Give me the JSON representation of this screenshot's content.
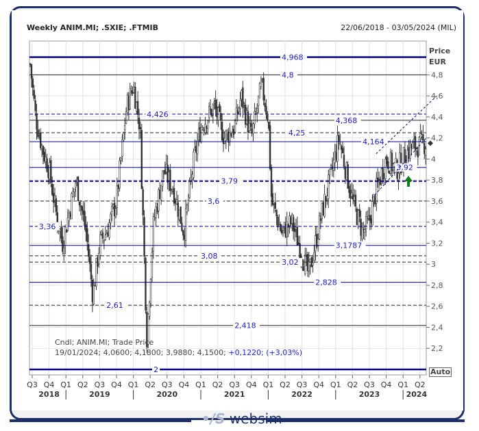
{
  "header": {
    "title": "Weekly ANIM.MI; .SXIE; .FTMIB",
    "range": "22/06/2018 - 03/05/2024 (MIL)"
  },
  "axis": {
    "price_label": "Price",
    "currency": "EUR",
    "auto": "Auto"
  },
  "legend": {
    "line1": "Cndl; ANIM.MI; Trade Price",
    "line2": "19/01/2024; 4,0600; 4,1800; 3,9880; 4,1500;",
    "change": "+0,1220; (+3,03%)"
  },
  "brand": "websim",
  "chart_data": {
    "type": "candlestick",
    "title": "Weekly ANIM.MI; .SXIE; .FTMIB",
    "ylabel": "Price EUR",
    "ylim": [
      2,
      4.968
    ],
    "yticks": [
      2.2,
      2.4,
      2.6,
      2.8,
      3,
      3.2,
      3.4,
      3.6,
      3.8,
      4,
      4.2,
      4.4,
      4.6,
      4.8
    ],
    "ytick_labels": [
      "2,2",
      "2,4",
      "2,6",
      "2,8",
      "3",
      "3,2",
      "3,4",
      "3,6",
      "3,8",
      "4",
      "4,2",
      "4,4",
      "4,6",
      "4,8"
    ],
    "xticks": [
      "Q3",
      "Q4",
      "Q1",
      "Q2",
      "Q3",
      "Q4",
      "Q1",
      "Q2",
      "Q3",
      "Q4",
      "Q1",
      "Q2",
      "Q3",
      "Q4",
      "Q1",
      "Q2",
      "Q3",
      "Q4",
      "Q1",
      "Q2",
      "Q3",
      "Q4",
      "Q1",
      "Q2"
    ],
    "years": [
      "2018",
      "2019",
      "2020",
      "2021",
      "2022",
      "2023",
      "2024"
    ],
    "last_close": 4.15,
    "price_path": [
      [
        2018.47,
        4.9
      ],
      [
        2018.55,
        4.4
      ],
      [
        2018.65,
        4.1
      ],
      [
        2018.75,
        3.9
      ],
      [
        2018.85,
        3.5
      ],
      [
        2018.95,
        3.2
      ],
      [
        2019.05,
        3.5
      ],
      [
        2019.15,
        3.8
      ],
      [
        2019.3,
        3.3
      ],
      [
        2019.4,
        2.7
      ],
      [
        2019.5,
        3.2
      ],
      [
        2019.6,
        3.3
      ],
      [
        2019.75,
        3.6
      ],
      [
        2019.9,
        4.5
      ],
      [
        2020.0,
        4.7
      ],
      [
        2020.1,
        4.3
      ],
      [
        2020.2,
        2.3
      ],
      [
        2020.3,
        3.4
      ],
      [
        2020.45,
        3.9
      ],
      [
        2020.6,
        3.7
      ],
      [
        2020.75,
        3.3
      ],
      [
        2020.9,
        4.0
      ],
      [
        2021.0,
        4.3
      ],
      [
        2021.2,
        4.5
      ],
      [
        2021.35,
        4.2
      ],
      [
        2021.5,
        4.3
      ],
      [
        2021.6,
        4.6
      ],
      [
        2021.75,
        4.2
      ],
      [
        2021.9,
        4.7
      ],
      [
        2022.0,
        4.4
      ],
      [
        2022.05,
        3.6
      ],
      [
        2022.2,
        3.3
      ],
      [
        2022.35,
        3.4
      ],
      [
        2022.5,
        3.1
      ],
      [
        2022.6,
        2.9
      ],
      [
        2022.8,
        3.5
      ],
      [
        2022.95,
        3.9
      ],
      [
        2023.05,
        4.2
      ],
      [
        2023.15,
        3.9
      ],
      [
        2023.25,
        3.6
      ],
      [
        2023.4,
        3.3
      ],
      [
        2023.5,
        3.4
      ],
      [
        2023.6,
        3.7
      ],
      [
        2023.75,
        4.0
      ],
      [
        2023.9,
        3.9
      ],
      [
        2024.0,
        4.0
      ],
      [
        2024.1,
        4.1
      ],
      [
        2024.34,
        4.15
      ]
    ],
    "levels": [
      {
        "value": 4.968,
        "label": "4,968",
        "style": "thick-blue",
        "label_at": 2022.2
      },
      {
        "value": 4.8,
        "label": "4,8",
        "style": "black",
        "label_at": 2022.2
      },
      {
        "value": 4.426,
        "label": "4,426",
        "style": "blue-dash",
        "label_at": 2020.2
      },
      {
        "value": 4.368,
        "label": "4,368",
        "style": "black",
        "label_at": 2023.0
      },
      {
        "value": 4.25,
        "label": "4,25",
        "style": "black-dash",
        "label_at": 2022.3
      },
      {
        "value": 4.164,
        "label": "4,164",
        "style": "blue",
        "label_at": 2023.4
      },
      {
        "value": 3.92,
        "label": "3,92",
        "style": "blue",
        "label_at": 2023.9
      },
      {
        "value": 3.79,
        "label": "3,79",
        "style": "thick-blue-dash",
        "label_at": 2021.3
      },
      {
        "value": 3.6,
        "label": "3,6",
        "style": "black-dash",
        "label_at": 2021.1
      },
      {
        "value": 3.36,
        "label": "3,36",
        "style": "blue-dash",
        "label_at": 2018.6
      },
      {
        "value": 3.1787,
        "label": "3,1787",
        "style": "blue",
        "label_at": 2023.0
      },
      {
        "value": 3.08,
        "label": "3,08",
        "style": "black-dash",
        "label_at": 2021.0
      },
      {
        "value": 3.02,
        "label": "3,02",
        "style": "black-dash",
        "label_at": 2022.2
      },
      {
        "value": 2.828,
        "label": "2,828",
        "style": "blue",
        "label_at": 2022.7
      },
      {
        "value": 2.61,
        "label": "2,61",
        "style": "black-dash",
        "label_at": 2019.6
      },
      {
        "value": 2.418,
        "label": "2,418",
        "style": "black",
        "label_at": 2021.5
      },
      {
        "value": 2,
        "label": "2",
        "style": "thick-blue",
        "label_at": 2020.3
      }
    ]
  },
  "colors": {
    "blue": "#00008b",
    "frame": "#1d2f6b",
    "candle": "#333333",
    "arrow": "#0a7a1a"
  }
}
